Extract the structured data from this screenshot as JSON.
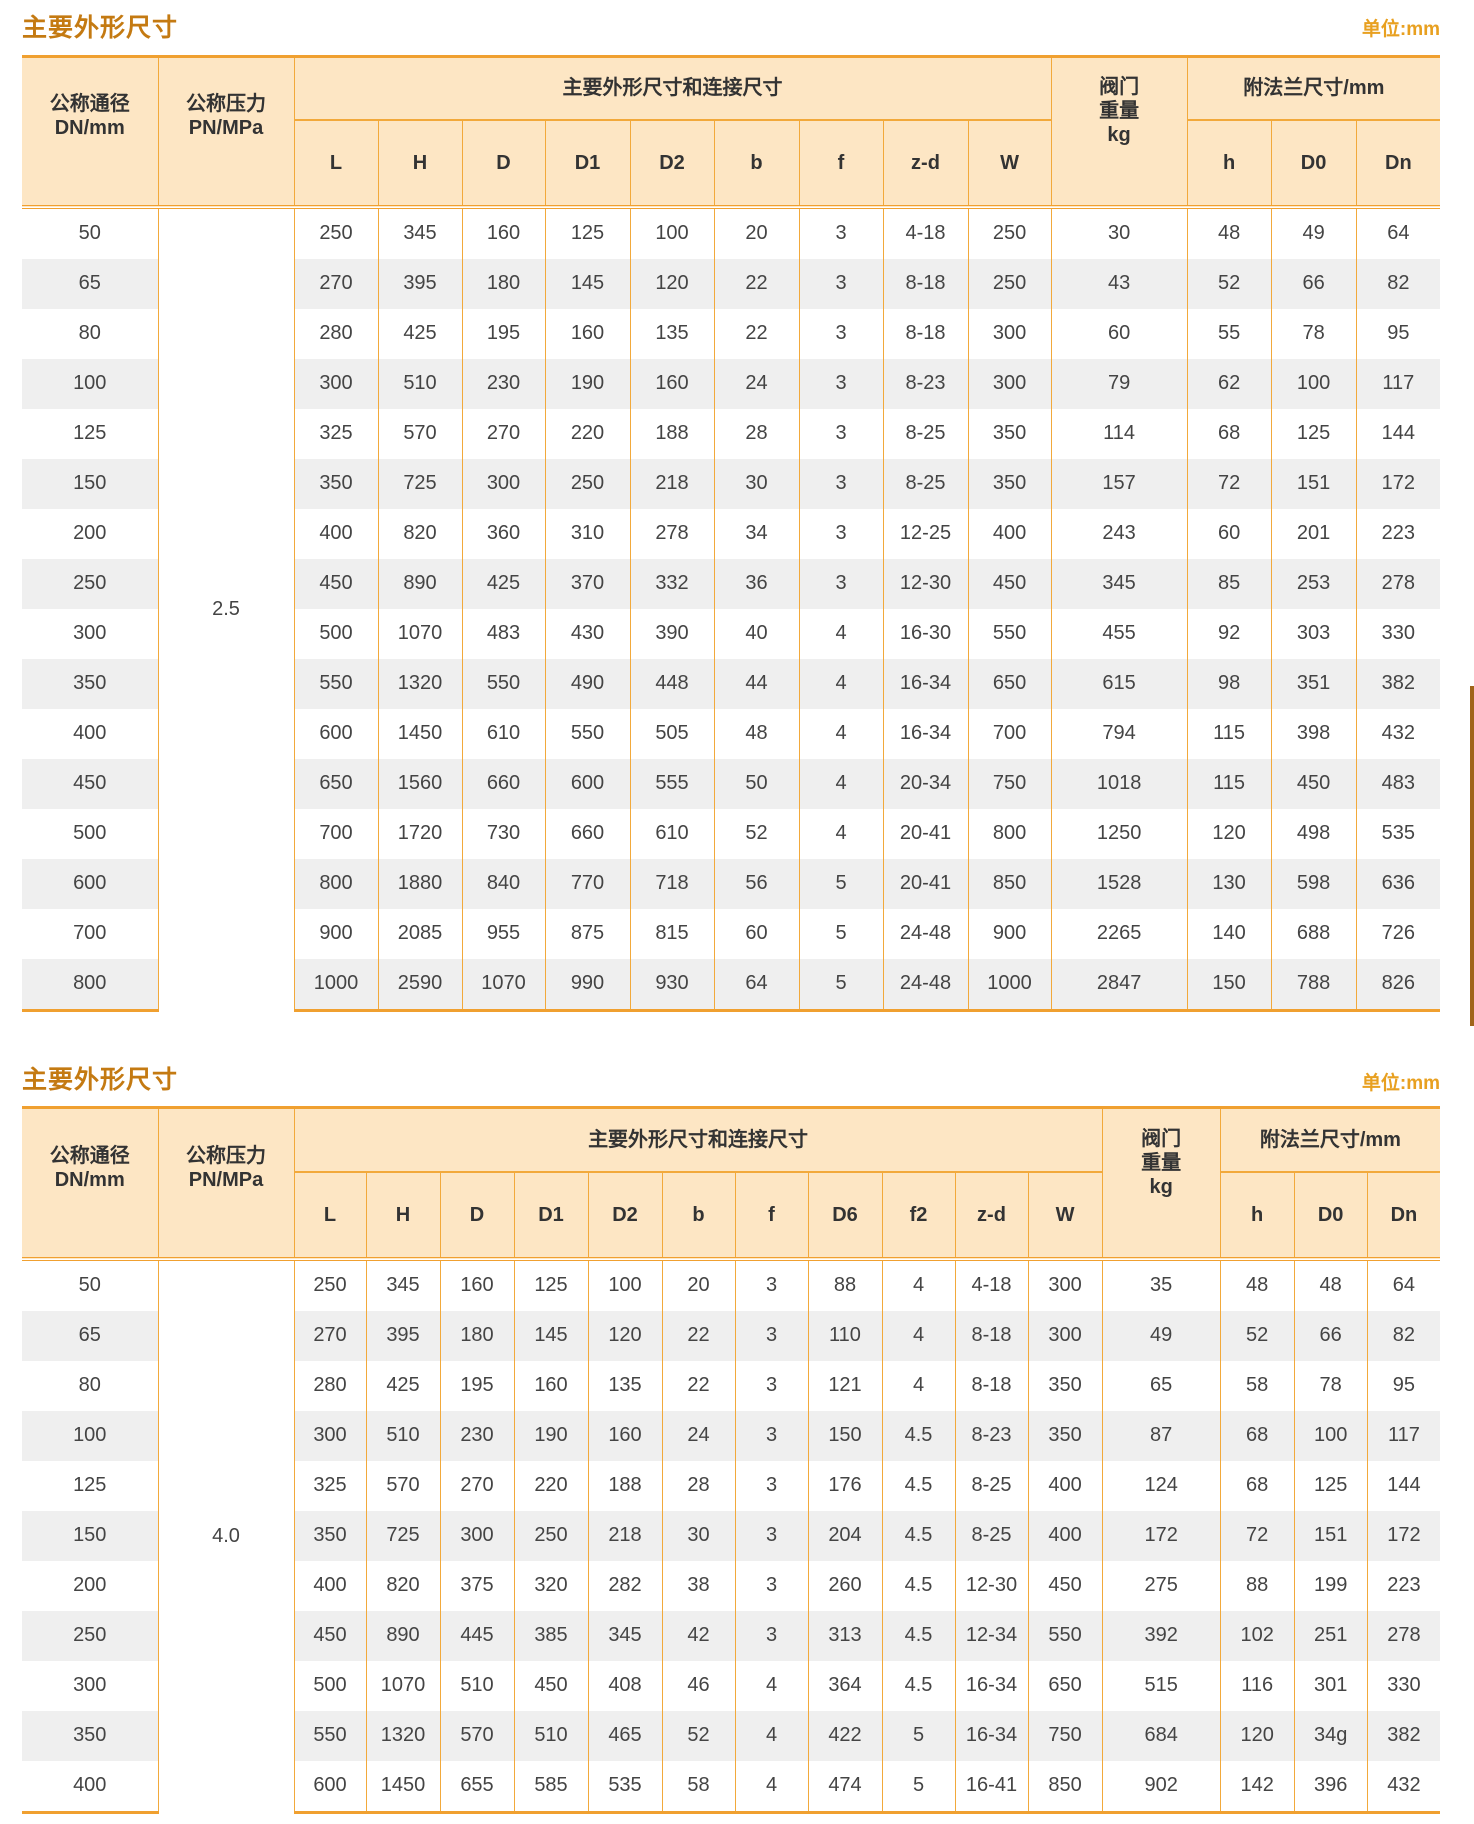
{
  "accent_color": "#f0a030",
  "title_color": "#c47a12",
  "header_bg": "#fde6c4",
  "tables": [
    {
      "title": "主要外形尺寸",
      "unit": "单位:mm",
      "headers": {
        "dn": "公称通径 DN/mm",
        "pn": "公称压力 PN/MPa",
        "main_group": "主要外形尺寸和连接尺寸",
        "weight": "阀门 重量 kg",
        "flange_group": "附法兰尺寸/mm",
        "main_cols": [
          "L",
          "H",
          "D",
          "D1",
          "D2",
          "b",
          "f",
          "z-d",
          "W"
        ],
        "flange_cols": [
          "h",
          "D0",
          "Dn"
        ]
      },
      "pn": "2.5",
      "rows": [
        [
          "50",
          "250",
          "345",
          "160",
          "125",
          "100",
          "20",
          "3",
          "4-18",
          "250",
          "30",
          "48",
          "49",
          "64"
        ],
        [
          "65",
          "270",
          "395",
          "180",
          "145",
          "120",
          "22",
          "3",
          "8-18",
          "250",
          "43",
          "52",
          "66",
          "82"
        ],
        [
          "80",
          "280",
          "425",
          "195",
          "160",
          "135",
          "22",
          "3",
          "8-18",
          "300",
          "60",
          "55",
          "78",
          "95"
        ],
        [
          "100",
          "300",
          "510",
          "230",
          "190",
          "160",
          "24",
          "3",
          "8-23",
          "300",
          "79",
          "62",
          "100",
          "117"
        ],
        [
          "125",
          "325",
          "570",
          "270",
          "220",
          "188",
          "28",
          "3",
          "8-25",
          "350",
          "114",
          "68",
          "125",
          "144"
        ],
        [
          "150",
          "350",
          "725",
          "300",
          "250",
          "218",
          "30",
          "3",
          "8-25",
          "350",
          "157",
          "72",
          "151",
          "172"
        ],
        [
          "200",
          "400",
          "820",
          "360",
          "310",
          "278",
          "34",
          "3",
          "12-25",
          "400",
          "243",
          "60",
          "201",
          "223"
        ],
        [
          "250",
          "450",
          "890",
          "425",
          "370",
          "332",
          "36",
          "3",
          "12-30",
          "450",
          "345",
          "85",
          "253",
          "278"
        ],
        [
          "300",
          "500",
          "1070",
          "483",
          "430",
          "390",
          "40",
          "4",
          "16-30",
          "550",
          "455",
          "92",
          "303",
          "330"
        ],
        [
          "350",
          "550",
          "1320",
          "550",
          "490",
          "448",
          "44",
          "4",
          "16-34",
          "650",
          "615",
          "98",
          "351",
          "382"
        ],
        [
          "400",
          "600",
          "1450",
          "610",
          "550",
          "505",
          "48",
          "4",
          "16-34",
          "700",
          "794",
          "115",
          "398",
          "432"
        ],
        [
          "450",
          "650",
          "1560",
          "660",
          "600",
          "555",
          "50",
          "4",
          "20-34",
          "750",
          "1018",
          "115",
          "450",
          "483"
        ],
        [
          "500",
          "700",
          "1720",
          "730",
          "660",
          "610",
          "52",
          "4",
          "20-41",
          "800",
          "1250",
          "120",
          "498",
          "535"
        ],
        [
          "600",
          "800",
          "1880",
          "840",
          "770",
          "718",
          "56",
          "5",
          "20-41",
          "850",
          "1528",
          "130",
          "598",
          "636"
        ],
        [
          "700",
          "900",
          "2085",
          "955",
          "875",
          "815",
          "60",
          "5",
          "24-48",
          "900",
          "2265",
          "140",
          "688",
          "726"
        ],
        [
          "800",
          "1000",
          "2590",
          "1070",
          "990",
          "930",
          "64",
          "5",
          "24-48",
          "1000",
          "2847",
          "150",
          "788",
          "826"
        ]
      ]
    },
    {
      "title": "主要外形尺寸",
      "unit": "单位:mm",
      "headers": {
        "dn": "公称通径 DN/mm",
        "pn": "公称压力 PN/MPa",
        "main_group": "主要外形尺寸和连接尺寸",
        "weight": "阀门 重量 kg",
        "flange_group": "附法兰尺寸/mm",
        "main_cols": [
          "L",
          "H",
          "D",
          "D1",
          "D2",
          "b",
          "f",
          "D6",
          "f2",
          "z-d",
          "W"
        ],
        "flange_cols": [
          "h",
          "D0",
          "Dn"
        ]
      },
      "pn": "4.0",
      "rows": [
        [
          "50",
          "250",
          "345",
          "160",
          "125",
          "100",
          "20",
          "3",
          "88",
          "4",
          "4-18",
          "300",
          "35",
          "48",
          "48",
          "64"
        ],
        [
          "65",
          "270",
          "395",
          "180",
          "145",
          "120",
          "22",
          "3",
          "110",
          "4",
          "8-18",
          "300",
          "49",
          "52",
          "66",
          "82"
        ],
        [
          "80",
          "280",
          "425",
          "195",
          "160",
          "135",
          "22",
          "3",
          "121",
          "4",
          "8-18",
          "350",
          "65",
          "58",
          "78",
          "95"
        ],
        [
          "100",
          "300",
          "510",
          "230",
          "190",
          "160",
          "24",
          "3",
          "150",
          "4.5",
          "8-23",
          "350",
          "87",
          "68",
          "100",
          "117"
        ],
        [
          "125",
          "325",
          "570",
          "270",
          "220",
          "188",
          "28",
          "3",
          "176",
          "4.5",
          "8-25",
          "400",
          "124",
          "68",
          "125",
          "144"
        ],
        [
          "150",
          "350",
          "725",
          "300",
          "250",
          "218",
          "30",
          "3",
          "204",
          "4.5",
          "8-25",
          "400",
          "172",
          "72",
          "151",
          "172"
        ],
        [
          "200",
          "400",
          "820",
          "375",
          "320",
          "282",
          "38",
          "3",
          "260",
          "4.5",
          "12-30",
          "450",
          "275",
          "88",
          "199",
          "223"
        ],
        [
          "250",
          "450",
          "890",
          "445",
          "385",
          "345",
          "42",
          "3",
          "313",
          "4.5",
          "12-34",
          "550",
          "392",
          "102",
          "251",
          "278"
        ],
        [
          "300",
          "500",
          "1070",
          "510",
          "450",
          "408",
          "46",
          "4",
          "364",
          "4.5",
          "16-34",
          "650",
          "515",
          "116",
          "301",
          "330"
        ],
        [
          "350",
          "550",
          "1320",
          "570",
          "510",
          "465",
          "52",
          "4",
          "422",
          "5",
          "16-34",
          "750",
          "684",
          "120",
          "34g",
          "382"
        ],
        [
          "400",
          "600",
          "1450",
          "655",
          "585",
          "535",
          "58",
          "4",
          "474",
          "5",
          "16-41",
          "850",
          "902",
          "142",
          "396",
          "432"
        ]
      ]
    }
  ]
}
